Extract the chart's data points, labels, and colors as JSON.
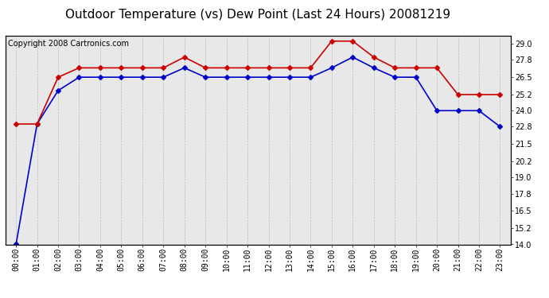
{
  "title": "Outdoor Temperature (vs) Dew Point (Last 24 Hours) 20081219",
  "copyright_text": "Copyright 2008 Cartronics.com",
  "x_labels": [
    "00:00",
    "01:00",
    "02:00",
    "03:00",
    "04:00",
    "05:00",
    "06:00",
    "07:00",
    "08:00",
    "09:00",
    "10:00",
    "11:00",
    "12:00",
    "13:00",
    "14:00",
    "15:00",
    "16:00",
    "17:00",
    "18:00",
    "19:00",
    "20:00",
    "21:00",
    "22:00",
    "23:00"
  ],
  "temp_data": [
    23.0,
    23.0,
    26.5,
    27.2,
    27.2,
    27.2,
    27.2,
    27.2,
    28.0,
    27.2,
    27.2,
    27.2,
    27.2,
    27.2,
    27.2,
    29.2,
    29.2,
    28.0,
    27.2,
    27.2,
    27.2,
    25.2,
    25.2,
    25.2
  ],
  "dew_data": [
    14.0,
    23.0,
    25.5,
    26.5,
    26.5,
    26.5,
    26.5,
    26.5,
    27.2,
    26.5,
    26.5,
    26.5,
    26.5,
    26.5,
    26.5,
    27.2,
    28.0,
    27.2,
    26.5,
    26.5,
    24.0,
    24.0,
    24.0,
    22.8
  ],
  "temp_color": "#cc0000",
  "dew_color": "#0000cc",
  "ylim": [
    14.0,
    29.6
  ],
  "yticks": [
    14.0,
    15.2,
    16.5,
    17.8,
    19.0,
    20.2,
    21.5,
    22.8,
    24.0,
    25.2,
    26.5,
    27.8,
    29.0
  ],
  "bg_color": "#ffffff",
  "plot_bg_color": "#e8e8e8",
  "grid_color": "#bbbbbb",
  "title_fontsize": 11,
  "copyright_fontsize": 7,
  "tick_fontsize": 7,
  "marker": "D",
  "markersize": 3.0,
  "linewidth": 1.2
}
